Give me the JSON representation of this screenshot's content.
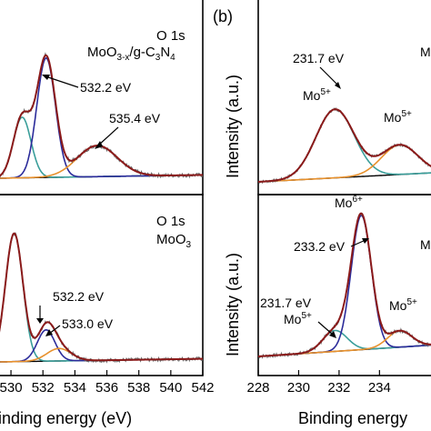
{
  "colors": {
    "envelope": "#8b1a1a",
    "component_blue": "#2b2b9a",
    "component_teal": "#3a9e9a",
    "component_orange": "#e8912d",
    "raw": "#6b6b6b",
    "baseline": "#000000"
  },
  "chart_data": [
    {
      "panel": "a-top",
      "type": "line",
      "title_lines": [
        "O 1s",
        "MoO3-x/g-C3N4"
      ],
      "xlim": [
        529.2,
        542
      ],
      "peaks": [
        {
          "name": "",
          "center": 530.7,
          "height": 0.37,
          "sigma": 0.55,
          "color": "component_teal"
        },
        {
          "name": "",
          "center": 532.2,
          "height": 0.73,
          "sigma": 0.58,
          "color": "component_blue"
        },
        {
          "name": "",
          "center": 535.4,
          "height": 0.19,
          "sigma": 1.25,
          "color": "component_orange"
        }
      ],
      "annotations": [
        {
          "text": "532.2 eV",
          "at_x": 532.2
        },
        {
          "text": "535.4 eV",
          "at_x": 535.4
        }
      ]
    },
    {
      "panel": "a-bottom",
      "type": "line",
      "title_lines": [
        "O 1s",
        "MoO3"
      ],
      "xlim": [
        529.2,
        542
      ],
      "x_ticks": [
        "530",
        "532",
        "534",
        "536",
        "538",
        "540",
        "542"
      ],
      "xlabel": "Binding energy (eV)",
      "peaks": [
        {
          "name": "",
          "center": 530.2,
          "height": 0.82,
          "sigma": 0.55,
          "color": "component_teal"
        },
        {
          "name": "",
          "center": 532.2,
          "height": 0.2,
          "sigma": 0.55,
          "color": "component_blue"
        },
        {
          "name": "",
          "center": 533.0,
          "height": 0.08,
          "sigma": 0.75,
          "color": "component_orange"
        }
      ],
      "annotations": [
        {
          "text": "532.2 eV",
          "at_x": 532.2
        },
        {
          "text": "533.0 eV",
          "at_x": 533.0
        }
      ]
    },
    {
      "panel": "b-top",
      "type": "line",
      "ylabel": "Intensity (a.u.)",
      "xlim": [
        228,
        237
      ],
      "peaks": [
        {
          "name": "Mo5+",
          "center": 231.8,
          "height": 0.58,
          "sigma": 0.95,
          "color": "component_teal"
        },
        {
          "name": "Mo5+",
          "center": 235.0,
          "height": 0.25,
          "sigma": 0.9,
          "color": "component_orange"
        }
      ],
      "annotations": [
        {
          "text": "231.7 eV",
          "at_x": 231.7
        },
        {
          "text": "Mo5+",
          "at_x": 231.8
        },
        {
          "text": "Mo5+",
          "at_x": 235.0
        }
      ]
    },
    {
      "panel": "b-bottom",
      "type": "line",
      "ylabel": "Intensity (a.u.)",
      "xlim": [
        228,
        237
      ],
      "x_ticks": [
        "228",
        "230",
        "232",
        "234"
      ],
      "xlabel": "Binding energy",
      "peaks": [
        {
          "name": "Mo5+",
          "center": 231.8,
          "height": 0.14,
          "sigma": 0.6,
          "color": "component_teal"
        },
        {
          "name": "Mo6+",
          "center": 233.1,
          "height": 0.9,
          "sigma": 0.5,
          "color": "component_blue"
        },
        {
          "name": "Mo5+",
          "center": 235.0,
          "height": 0.11,
          "sigma": 0.6,
          "color": "component_orange"
        }
      ],
      "annotations": [
        {
          "text": "Mo6+",
          "at_x": 233.1
        },
        {
          "text": "233.2 eV",
          "at_x": 233.2
        },
        {
          "text": "231.7 eV",
          "at_x": 231.7
        },
        {
          "text": "Mo5+",
          "at_x": 231.8
        },
        {
          "text": "Mo5+",
          "at_x": 235.0
        }
      ]
    }
  ],
  "panel_labels": {
    "b": "(b)"
  },
  "text": {
    "a_top_o1s": "O 1s",
    "a_top_moox": "MoO",
    "a_top_moox_sub": "3-x",
    "a_top_gcn": "/g-C",
    "a_top_gcn_sub3": "3",
    "a_top_n": "N",
    "a_top_gcn_sub4": "4",
    "a_top_ann1": "532.2 eV",
    "a_top_ann2": "535.4 eV",
    "a_bot_o1s": "O 1s",
    "a_bot_moo": "MoO",
    "a_bot_moo_sub": "3",
    "a_bot_ann1": "532.2 eV",
    "a_bot_ann2": "533.0 eV",
    "b_top_ann_ev": "231.7 eV",
    "b_top_mo1": "Mo",
    "b_top_mo1_sup": "5+",
    "b_top_mo2": "Mo",
    "b_top_mo2_sup": "5+",
    "b_top_mo_edge": "M",
    "b_bot_mo6": "Mo",
    "b_bot_mo6_sup": "6+",
    "b_bot_ev1": "233.2 eV",
    "b_bot_ev2": "231.7 eV",
    "b_bot_mo5a": "Mo",
    "b_bot_mo5a_sup": "5+",
    "b_bot_mo5b": "Mo",
    "b_bot_mo5b_sup": "5+",
    "b_bot_mo_edge": "M",
    "ylabel_b_top": "Intensity (a.u.)",
    "ylabel_b_bot": "Intensity (a.u.)",
    "xlabel_a": "Binding energy (eV)",
    "xlabel_b": "Binding energy",
    "xticks_a": [
      "530",
      "532",
      "534",
      "536",
      "538",
      "540",
      "542"
    ],
    "xticks_b": [
      "228",
      "230",
      "232",
      "234"
    ]
  }
}
